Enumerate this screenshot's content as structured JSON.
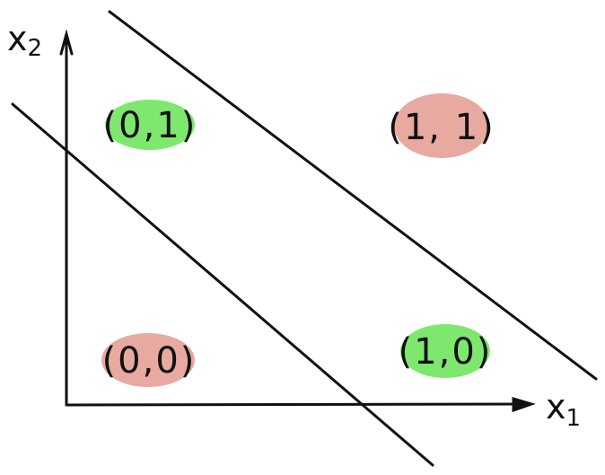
{
  "axes": {
    "x": {
      "letter": "x",
      "subscript": "1"
    },
    "y": {
      "letter": "x",
      "subscript": "2"
    }
  },
  "points": {
    "p00": {
      "label": "(0,0)",
      "color": "#e7a9a0"
    },
    "p01": {
      "label": "(0,1)",
      "color": "#7ee86e"
    },
    "p10": {
      "label": "(1,0)",
      "color": "#7ee86e"
    },
    "p11": {
      "label": "(1, 1)",
      "color": "#e7a9a0"
    }
  },
  "colors": {
    "ink": "#111111",
    "class_green": "#7ee86e",
    "class_red": "#e7a9a0"
  }
}
